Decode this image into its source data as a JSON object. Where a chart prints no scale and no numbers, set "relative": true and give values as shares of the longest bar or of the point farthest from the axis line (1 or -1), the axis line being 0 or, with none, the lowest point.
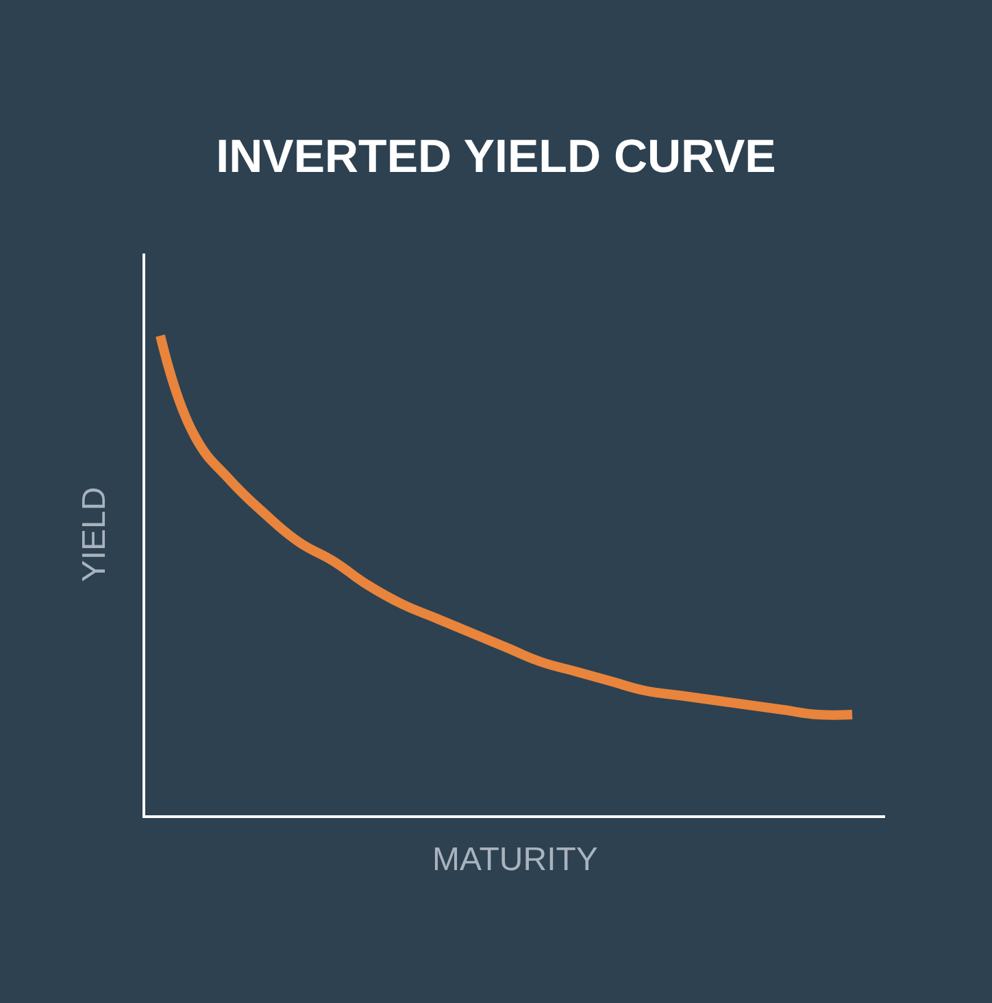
{
  "chart_data": {
    "type": "line",
    "title": "INVERTED YIELD CURVE",
    "xlabel": "MATURITY",
    "ylabel": "YIELD",
    "relative": true,
    "categories": [
      null,
      null,
      null,
      null,
      null,
      null,
      null,
      null,
      null,
      null,
      null,
      null,
      null,
      null,
      null,
      null,
      null,
      null,
      null,
      null,
      null
    ],
    "series": [
      {
        "color": "#e8843c",
        "values": [
          1,
          0.79,
          0.7,
          0.63,
          0.57,
          0.53,
          0.48,
          0.44,
          0.41,
          0.38,
          0.35,
          0.32,
          0.3,
          0.28,
          0.26,
          0.25,
          0.24,
          0.23,
          0.22,
          0.21,
          0.21
        ]
      }
    ],
    "marker": "none",
    "line_style": "solid",
    "tick_labels": false
  }
}
